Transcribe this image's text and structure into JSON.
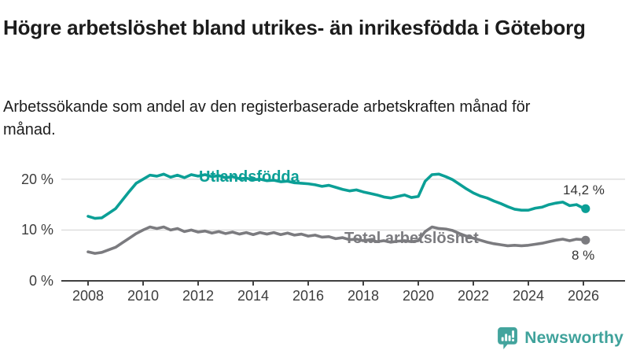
{
  "header": {
    "title": "Högre arbetslöshet bland utrikes- än inrikesfödda i Göteborg",
    "subtitle": "Arbetssökande som andel av den registerbaserade arbetskraften månad för månad."
  },
  "chart_data": {
    "type": "line",
    "title": "Högre arbetslöshet bland utrikes- än inrikesfödda i Göteborg",
    "subtitle": "Arbetssökande som andel av den registerbaserade arbetskraften månad för månad.",
    "xlabel": "",
    "ylabel": "",
    "y_unit": "%",
    "ylim": [
      0,
      23
    ],
    "xlim": [
      2007.9,
      2026.2
    ],
    "grid": "horizontal",
    "legend_position": "inline-labels",
    "y_ticks": [
      {
        "value": 0,
        "label": "0 %"
      },
      {
        "value": 10,
        "label": "10 %"
      },
      {
        "value": 20,
        "label": "20 %"
      }
    ],
    "x_ticks": [
      {
        "value": 2008,
        "label": "2008"
      },
      {
        "value": 2010,
        "label": "2010"
      },
      {
        "value": 2012,
        "label": "2012"
      },
      {
        "value": 2014,
        "label": "2014"
      },
      {
        "value": 2016,
        "label": "2016"
      },
      {
        "value": 2018,
        "label": "2018"
      },
      {
        "value": 2020,
        "label": "2020"
      },
      {
        "value": 2022,
        "label": "2022"
      },
      {
        "value": 2024,
        "label": "2024"
      },
      {
        "value": 2026,
        "label": "2026"
      }
    ],
    "series": [
      {
        "name": "Utlandsfödda",
        "color": "#0b9f96",
        "end_label": "14,2 %",
        "end_value": 14.2,
        "x": [
          2008.0,
          2008.25,
          2008.5,
          2008.75,
          2009.0,
          2009.25,
          2009.5,
          2009.75,
          2010.0,
          2010.25,
          2010.5,
          2010.75,
          2011.0,
          2011.25,
          2011.5,
          2011.75,
          2012.0,
          2012.25,
          2012.5,
          2012.75,
          2013.0,
          2013.25,
          2013.5,
          2013.75,
          2014.0,
          2014.25,
          2014.5,
          2014.75,
          2015.0,
          2015.25,
          2015.5,
          2015.75,
          2016.0,
          2016.25,
          2016.5,
          2016.75,
          2017.0,
          2017.25,
          2017.5,
          2017.75,
          2018.0,
          2018.25,
          2018.5,
          2018.75,
          2019.0,
          2019.25,
          2019.5,
          2019.75,
          2020.0,
          2020.25,
          2020.5,
          2020.75,
          2021.0,
          2021.25,
          2021.5,
          2021.75,
          2022.0,
          2022.25,
          2022.5,
          2022.75,
          2023.0,
          2023.25,
          2023.5,
          2023.75,
          2024.0,
          2024.25,
          2024.5,
          2024.75,
          2025.0,
          2025.25,
          2025.5,
          2025.75,
          2026.0,
          2026.08
        ],
        "values": [
          12.7,
          12.3,
          12.4,
          13.3,
          14.2,
          15.9,
          17.6,
          19.2,
          20.0,
          20.8,
          20.6,
          21.0,
          20.4,
          20.8,
          20.3,
          20.9,
          20.6,
          20.9,
          20.5,
          20.7,
          20.3,
          20.5,
          20.1,
          20.2,
          19.9,
          20.0,
          19.7,
          19.8,
          19.5,
          19.6,
          19.3,
          19.2,
          19.1,
          18.9,
          18.6,
          18.8,
          18.4,
          18.0,
          17.7,
          17.9,
          17.5,
          17.2,
          16.9,
          16.5,
          16.3,
          16.6,
          16.9,
          16.4,
          16.6,
          19.6,
          20.9,
          21.0,
          20.5,
          19.9,
          19.0,
          18.1,
          17.3,
          16.7,
          16.3,
          15.7,
          15.2,
          14.6,
          14.1,
          13.9,
          13.9,
          14.3,
          14.5,
          15.0,
          15.3,
          15.5,
          14.8,
          15.0,
          14.3,
          14.2
        ]
      },
      {
        "name": "Total arbetslöshet",
        "color": "#7b7b7f",
        "end_label": "8 %",
        "end_value": 8.0,
        "x": [
          2008.0,
          2008.25,
          2008.5,
          2008.75,
          2009.0,
          2009.25,
          2009.5,
          2009.75,
          2010.0,
          2010.25,
          2010.5,
          2010.75,
          2011.0,
          2011.25,
          2011.5,
          2011.75,
          2012.0,
          2012.25,
          2012.5,
          2012.75,
          2013.0,
          2013.25,
          2013.5,
          2013.75,
          2014.0,
          2014.25,
          2014.5,
          2014.75,
          2015.0,
          2015.25,
          2015.5,
          2015.75,
          2016.0,
          2016.25,
          2016.5,
          2016.75,
          2017.0,
          2017.25,
          2017.5,
          2017.75,
          2018.0,
          2018.25,
          2018.5,
          2018.75,
          2019.0,
          2019.25,
          2019.5,
          2019.75,
          2020.0,
          2020.25,
          2020.5,
          2020.75,
          2021.0,
          2021.25,
          2021.5,
          2021.75,
          2022.0,
          2022.25,
          2022.5,
          2022.75,
          2023.0,
          2023.25,
          2023.5,
          2023.75,
          2024.0,
          2024.25,
          2024.5,
          2024.75,
          2025.0,
          2025.25,
          2025.5,
          2025.75,
          2026.0,
          2026.08
        ],
        "values": [
          5.7,
          5.4,
          5.6,
          6.1,
          6.6,
          7.5,
          8.4,
          9.3,
          10.0,
          10.6,
          10.3,
          10.6,
          10.0,
          10.3,
          9.7,
          10.0,
          9.6,
          9.8,
          9.4,
          9.7,
          9.3,
          9.6,
          9.2,
          9.5,
          9.1,
          9.5,
          9.2,
          9.5,
          9.1,
          9.4,
          9.0,
          9.2,
          8.8,
          9.0,
          8.6,
          8.7,
          8.3,
          8.5,
          8.1,
          8.2,
          7.9,
          8.1,
          7.7,
          7.9,
          7.6,
          7.8,
          7.9,
          7.7,
          7.9,
          9.7,
          10.6,
          10.3,
          10.2,
          9.9,
          9.3,
          8.8,
          8.4,
          8.0,
          7.6,
          7.3,
          7.1,
          6.9,
          7.0,
          6.9,
          7.0,
          7.2,
          7.4,
          7.7,
          8.0,
          8.2,
          7.9,
          8.2,
          8.1,
          8.0
        ]
      }
    ]
  },
  "footer": {
    "brand": "Newsworthy",
    "logo_icon": "bar-chart-speech-bubble-icon",
    "brand_color": "#3fa29b"
  }
}
